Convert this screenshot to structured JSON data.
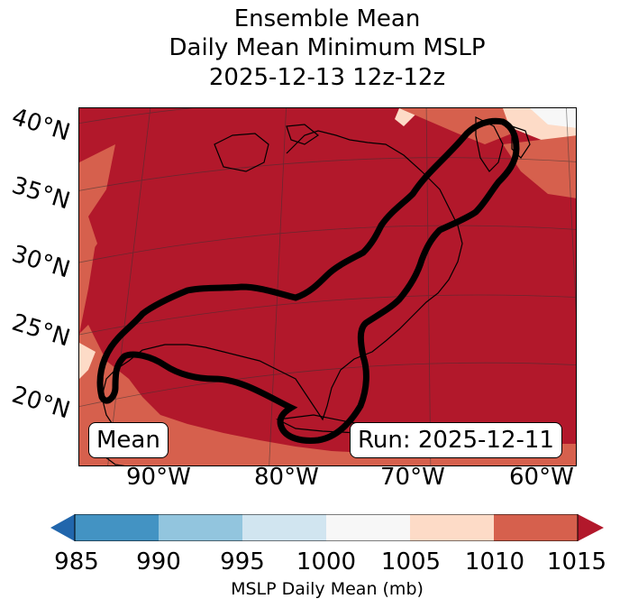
{
  "title": {
    "line1": "Ensemble Mean",
    "line2": "Daily Mean Minimum MSLP",
    "line3": "2025-12-13 12z-12z"
  },
  "lat_labels": [
    "40°N",
    "35°N",
    "30°N",
    "25°N",
    "20°N"
  ],
  "lon_labels": [
    "90°W",
    "80°W",
    "70°W",
    "60°W"
  ],
  "badges": {
    "mean": "Mean",
    "run": "Run: 2025-12-11"
  },
  "colorbar": {
    "ticks": [
      "985",
      "990",
      "995",
      "1000",
      "1005",
      "1010",
      "1015"
    ],
    "colors": [
      "#2166ac",
      "#4393c3",
      "#92c5de",
      "#d1e5f0",
      "#f7f7f7",
      "#fddbc7",
      "#d6604d",
      "#b2182b"
    ],
    "label": "MSLP Daily Mean (mb)"
  },
  "map_colors": {
    "dominant": "#b2182b",
    "mid": "#d6604d",
    "light": "#fddbc7",
    "white": "#f7f7f7",
    "contour": "#000000"
  }
}
